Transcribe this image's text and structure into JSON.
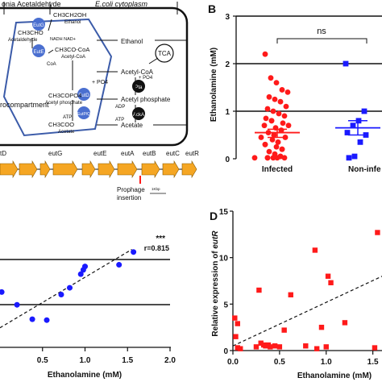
{
  "panel_a": {
    "cytoplasm_title": "E.coli cytoplasm",
    "aldehyde_label": "onia Acetaldehyde",
    "compartment_label": "rocompartment",
    "enzymes": [
      "EutG",
      "EutE",
      "EutD",
      "EutP/Q",
      "Pta",
      "AckA",
      "TCA"
    ],
    "metabolites": {
      "ethanol_inner": "CH3CH2OH",
      "ethanol_inner_name": "Ethanol",
      "acetaldehyde_inner": "CH3CHO",
      "acetaldehyde_name": "Acetaldehyde",
      "nadh": "NADH  NAD+",
      "acetyl_coa_inner": "CH3CO-CoA",
      "acetyl_coa_name": "Acetyl-CoA",
      "coa": "CoA",
      "po4": "+ PO4",
      "acetyl_p_inner": "CH3COPO4",
      "acetyl_p_name": "Acetyl phosphate",
      "atp": "ATP",
      "acetate_inner": "CH3COO",
      "acetate_name": "Acetate",
      "ethanol_out": "Ethanol",
      "acetyl_coa_out": "Acetyl-CoA",
      "po4_out": "+ PO4",
      "acetyl_p_out": "Acetyl phosphate",
      "adp": "ADP",
      "atp_out": "ATP",
      "acetate_out": "Acetate"
    },
    "genes": [
      "tD",
      "eutG",
      "eutE",
      "eutA",
      "eutB",
      "eutC",
      "eutR"
    ],
    "prophage_label": "Prophage\ninsertion",
    "scale_label": "1Kbp"
  },
  "colors": {
    "blue": "#1a1aff",
    "red": "#ff1a1a",
    "gene_orange": "#f5a623",
    "compartment_blue": "#3b5ba9",
    "enzyme_blue": "#4a6fd0"
  },
  "chart_data": [
    {
      "panel": "B",
      "type": "scatter",
      "ylabel": "Ethanolamine (mM)",
      "ylim": [
        0,
        3
      ],
      "yticks": [
        "0",
        "1",
        "2",
        "3"
      ],
      "categories": [
        "Infected",
        "Non-infe"
      ],
      "annotation": "ns",
      "series": [
        {
          "name": "Infected",
          "marker": "circle",
          "color": "#ff1a1a",
          "mean": 0.55,
          "sem_low": 0.45,
          "sem_high": 0.62,
          "values": [
            2.2,
            1.7,
            1.6,
            1.45,
            1.4,
            1.3,
            1.25,
            1.2,
            1.1,
            1.05,
            1.0,
            0.95,
            0.9,
            0.85,
            0.8,
            0.8,
            0.75,
            0.7,
            0.7,
            0.65,
            0.6,
            0.6,
            0.55,
            0.5,
            0.5,
            0.45,
            0.45,
            0.4,
            0.35,
            0.35,
            0.3,
            0.3,
            0.25,
            0.2,
            0.2,
            0.15,
            0.1,
            0.05,
            0.05,
            0.02,
            0.02,
            0.02,
            0.02,
            0.02,
            0.02
          ]
        },
        {
          "name": "Non-infe",
          "marker": "square",
          "color": "#1a1aff",
          "mean": 0.65,
          "sem_low": 0.5,
          "sem_high": 0.8,
          "values": [
            2.0,
            1.0,
            0.8,
            0.7,
            0.55,
            0.5,
            0.35,
            0.05,
            0.02
          ]
        }
      ]
    },
    {
      "panel": "C",
      "type": "scatter",
      "xlabel": "Ethanolamine (mM)",
      "xlim": [
        0,
        2.0
      ],
      "xticks": [
        "0.5",
        "1.0",
        "1.5",
        "2.0"
      ],
      "annotation": "***",
      "stat": "r=0.815",
      "points": [
        [
          0.02,
          0.65
        ],
        [
          0.2,
          0.5
        ],
        [
          0.38,
          0.33
        ],
        [
          0.55,
          0.32
        ],
        [
          0.72,
          0.62
        ],
        [
          0.82,
          0.7
        ],
        [
          0.95,
          0.86
        ],
        [
          0.98,
          0.91
        ],
        [
          1.0,
          0.95
        ],
        [
          1.4,
          0.97
        ],
        [
          1.57,
          1.12
        ]
      ],
      "trend": [
        [
          0.0,
          0.23
        ],
        [
          1.55,
          1.15
        ]
      ]
    },
    {
      "panel": "D",
      "type": "scatter",
      "ylabel": "Relative expression of eutR",
      "xlabel": "Ethanolamine (mM)",
      "xlim": [
        0,
        1.65
      ],
      "ylim": [
        0,
        15
      ],
      "yticks": [
        "0",
        "5",
        "10",
        "15"
      ],
      "xticks": [
        "0.0",
        "0.5",
        "1.0",
        "1.5"
      ],
      "points": [
        [
          0.02,
          3.5
        ],
        [
          0.05,
          2.9
        ],
        [
          0.03,
          1.5
        ],
        [
          0.05,
          0.3
        ],
        [
          0.08,
          0.2
        ],
        [
          0.25,
          0.4
        ],
        [
          0.28,
          6.5
        ],
        [
          0.3,
          0.8
        ],
        [
          0.33,
          0.6
        ],
        [
          0.35,
          0.5
        ],
        [
          0.38,
          0.6
        ],
        [
          0.4,
          0.4
        ],
        [
          0.45,
          0.5
        ],
        [
          0.5,
          0.4
        ],
        [
          0.55,
          2.2
        ],
        [
          0.62,
          6.0
        ],
        [
          0.78,
          0.5
        ],
        [
          0.88,
          10.8
        ],
        [
          0.9,
          0.2
        ],
        [
          0.95,
          2.5
        ],
        [
          1.0,
          0.4
        ],
        [
          1.02,
          8.0
        ],
        [
          1.05,
          7.3
        ],
        [
          1.2,
          3.0
        ],
        [
          1.55,
          12.7
        ],
        [
          1.52,
          0.3
        ]
      ],
      "trend": [
        [
          0.0,
          0.5
        ],
        [
          1.6,
          8.0
        ]
      ]
    }
  ],
  "labels": {
    "panel_b_letter": "B",
    "panel_d_letter": "D",
    "c_xlabel": "Ethanolamine (mM)",
    "d_xlabel": "Ethanolamine (mM)",
    "d_ylabel_prefix": "Relative expression of ",
    "d_ylabel_gene": "eutR",
    "b_ylabel": "Ethanolamine (mM)"
  }
}
